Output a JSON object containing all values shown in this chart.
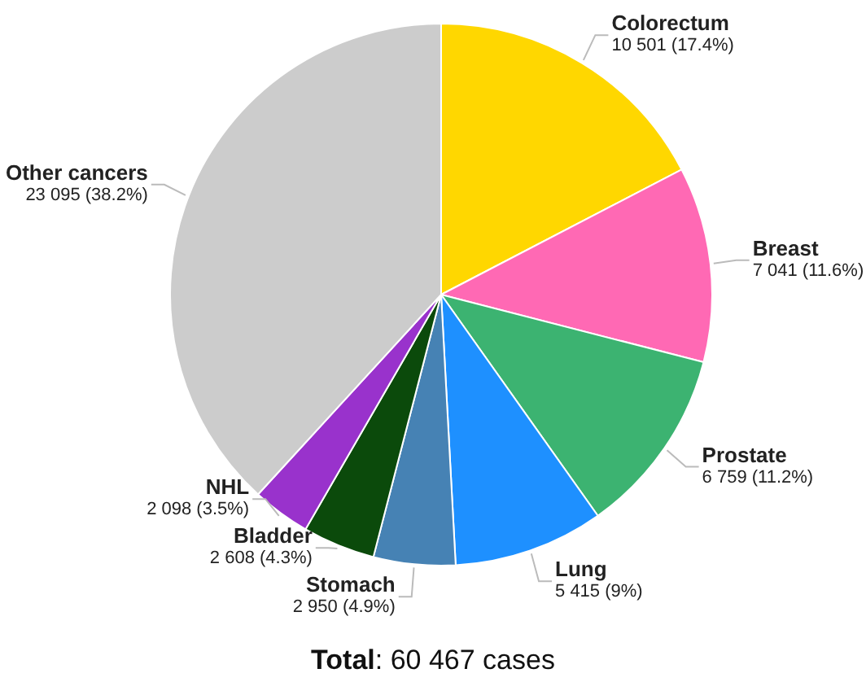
{
  "chart_data": {
    "type": "pie",
    "categories": [
      "Colorectum",
      "Breast",
      "Prostate",
      "Lung",
      "Stomach",
      "Bladder",
      "NHL",
      "Other cancers"
    ],
    "values": [
      10501,
      7041,
      6759,
      5415,
      2950,
      2608,
      2098,
      23095
    ],
    "colors": [
      "#ffd700",
      "#ff69b4",
      "#3cb371",
      "#1e90ff",
      "#4682b4",
      "#0b4a0b",
      "#9932cc",
      "#cccccc"
    ],
    "value_labels": [
      "10 501 (17.4%)",
      "7 041 (11.6%)",
      "6 759 (11.2%)",
      "5 415 (9%)",
      "2 950 (4.9%)",
      "2 608 (4.3%)",
      "2 098 (3.5%)",
      "23 095 (38.2%)"
    ],
    "annotations": [
      "Total: 60 467 cases"
    ],
    "legend": false
  }
}
